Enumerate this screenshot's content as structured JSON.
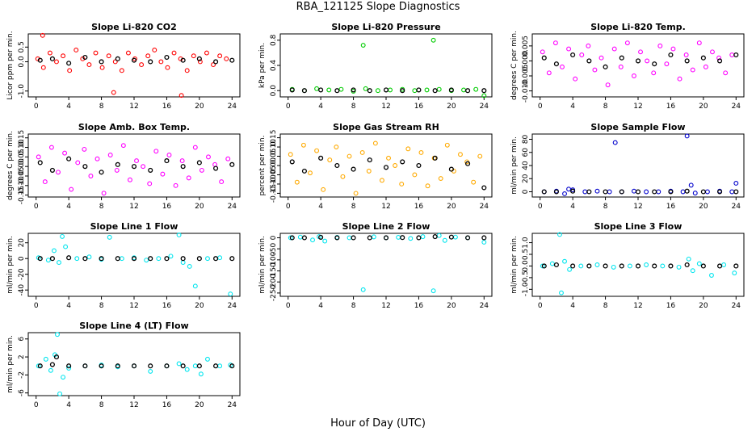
{
  "figure": {
    "title": "RBA_121125  Slope Diagnostics",
    "xlabel": "Hour of Day (UTC)",
    "x_ticks": [
      0,
      4,
      8,
      12,
      16,
      20,
      24
    ],
    "xlim": [
      -0.96,
      24.96
    ]
  },
  "chart_data": [
    {
      "type": "scatter",
      "title": "Slope Li-820 CO2",
      "ylabel": "Licor ppm per min.",
      "ylim": [
        -1.2,
        0.95
      ],
      "yticks": [
        -1.0,
        0.0,
        0.5
      ],
      "tick_labels": [
        "-1.0",
        "0.0",
        "0.5"
      ],
      "series": [
        {
          "color": "#ff0000",
          "role": "raw",
          "x": [
            0.2,
            0.9,
            1.7,
            2.5,
            3.3,
            4.1,
            4.9,
            5.7,
            6.5,
            7.3,
            8.1,
            8.9,
            9.7,
            10.5,
            11.3,
            12.1,
            12.9,
            13.7,
            14.5,
            15.3,
            16.1,
            16.9,
            17.7,
            18.5,
            19.3,
            20.1,
            20.9,
            21.7,
            22.5,
            23.3,
            0.8,
            9.5,
            17.8
          ],
          "y": [
            0.1,
            -0.2,
            0.3,
            0.0,
            0.2,
            -0.3,
            0.4,
            0.1,
            -0.1,
            0.3,
            -0.2,
            0.2,
            0.0,
            -0.3,
            0.3,
            0.1,
            -0.1,
            0.2,
            0.4,
            0.0,
            -0.2,
            0.3,
            0.1,
            -0.3,
            0.2,
            0.0,
            0.3,
            -0.1,
            0.2,
            0.1,
            0.9,
            -1.05,
            -1.15
          ]
        },
        {
          "color": "#000000",
          "role": "hourly",
          "x": [
            0.5,
            2.0,
            4.0,
            6.0,
            8.0,
            10.0,
            12.0,
            14.0,
            16.0,
            18.0,
            20.0,
            22.0,
            24.0
          ],
          "y": [
            0.05,
            0.1,
            -0.05,
            0.15,
            0.0,
            0.1,
            0.05,
            0.0,
            0.15,
            0.05,
            0.1,
            0.0,
            0.05
          ]
        }
      ]
    },
    {
      "type": "scatter",
      "title": "Slope Li-820 Pressure",
      "ylabel": "kPa per min.",
      "ylim": [
        -0.1,
        0.9
      ],
      "yticks": [
        0.0,
        0.4,
        0.8
      ],
      "tick_labels": [
        "0.0",
        "0.4",
        "0.8"
      ],
      "series": [
        {
          "color": "#00cc00",
          "role": "raw",
          "x": [
            0.5,
            2.0,
            3.5,
            5.0,
            6.5,
            8.0,
            9.5,
            11.0,
            12.5,
            14.0,
            15.5,
            17.0,
            18.5,
            20.0,
            21.5,
            23.0,
            9.2,
            17.8,
            24.0
          ],
          "y": [
            0.02,
            0.0,
            0.03,
            0.01,
            0.02,
            -0.01,
            0.03,
            0.0,
            0.01,
            0.02,
            0.0,
            0.01,
            0.02,
            0.0,
            0.01,
            0.02,
            0.72,
            0.8,
            -0.08
          ]
        },
        {
          "color": "#000000",
          "role": "hourly",
          "x": [
            0.5,
            2.0,
            4.0,
            6.0,
            8.0,
            10.0,
            12.0,
            14.0,
            16.0,
            18.0,
            20.0,
            22.0,
            24.0
          ],
          "y": [
            0.01,
            0.0,
            0.01,
            0.0,
            0.01,
            0.0,
            0.01,
            0.0,
            0.01,
            0.0,
            0.01,
            0.0,
            0.0
          ]
        }
      ]
    },
    {
      "type": "scatter",
      "title": "Slope Li-820 Temp.",
      "ylabel": "degrees C per min.",
      "ylim": [
        -0.012,
        0.009
      ],
      "yticks": [
        -0.01,
        -0.005,
        0.0,
        0.005
      ],
      "tick_labels": [
        "-0.010",
        "-0.005",
        "0.000",
        "0.005"
      ],
      "series": [
        {
          "color": "#ff00ff",
          "role": "raw",
          "x": [
            0.3,
            1.1,
            1.9,
            2.7,
            3.5,
            4.3,
            5.1,
            5.9,
            6.7,
            7.5,
            8.3,
            9.1,
            9.9,
            10.7,
            11.5,
            12.3,
            13.1,
            13.9,
            14.7,
            15.5,
            16.3,
            17.1,
            17.9,
            18.7,
            19.5,
            20.3,
            21.1,
            21.9,
            22.7,
            23.5
          ],
          "y": [
            0.003,
            -0.004,
            0.006,
            -0.002,
            0.004,
            -0.006,
            0.002,
            0.005,
            -0.003,
            0.001,
            -0.008,
            0.004,
            -0.002,
            0.006,
            -0.005,
            0.003,
            0.0,
            -0.004,
            0.005,
            -0.001,
            0.004,
            -0.006,
            0.002,
            -0.003,
            0.006,
            -0.002,
            0.003,
            0.001,
            -0.004,
            0.002
          ]
        },
        {
          "color": "#000000",
          "role": "hourly",
          "x": [
            0.5,
            2.0,
            4.0,
            6.0,
            8.0,
            10.0,
            12.0,
            14.0,
            16.0,
            18.0,
            20.0,
            22.0,
            24.0
          ],
          "y": [
            0.001,
            -0.001,
            0.002,
            0.0,
            -0.002,
            0.001,
            0.0,
            -0.001,
            0.002,
            0.0,
            0.001,
            0.0,
            0.002
          ]
        }
      ]
    },
    {
      "type": "scatter",
      "title": "Slope Amb. Box Temp.",
      "ylabel": "degrees C per min.",
      "ylim": [
        -0.16,
        0.17
      ],
      "yticks": [
        -0.15,
        -0.1,
        -0.05,
        0.0,
        0.05,
        0.1,
        0.15
      ],
      "tick_labels": [
        "-0.15",
        "-0.10",
        "-0.05",
        "0.00",
        "0.05",
        "0.10",
        "0.15"
      ],
      "series": [
        {
          "color": "#ff00ff",
          "role": "raw",
          "x": [
            0.3,
            1.1,
            1.9,
            2.7,
            3.5,
            4.3,
            5.1,
            5.9,
            6.7,
            7.5,
            8.3,
            9.1,
            9.9,
            10.7,
            11.5,
            12.3,
            13.1,
            13.9,
            14.7,
            15.5,
            16.3,
            17.1,
            17.9,
            18.7,
            19.5,
            20.3,
            21.1,
            21.9,
            22.7,
            23.5
          ],
          "y": [
            0.05,
            -0.08,
            0.1,
            -0.03,
            0.07,
            -0.12,
            0.02,
            0.09,
            -0.05,
            0.04,
            -0.14,
            0.06,
            -0.02,
            0.11,
            -0.07,
            0.03,
            0.0,
            -0.09,
            0.08,
            -0.04,
            0.06,
            -0.1,
            0.03,
            -0.06,
            0.1,
            -0.02,
            0.05,
            0.01,
            -0.08,
            0.04
          ]
        },
        {
          "color": "#000000",
          "role": "hourly",
          "x": [
            0.5,
            2.0,
            4.0,
            6.0,
            8.0,
            10.0,
            12.0,
            14.0,
            16.0,
            18.0,
            20.0,
            22.0,
            24.0
          ],
          "y": [
            0.02,
            -0.02,
            0.04,
            0.0,
            -0.03,
            0.01,
            0.0,
            -0.02,
            0.03,
            0.0,
            0.02,
            -0.01,
            0.01
          ]
        }
      ]
    },
    {
      "type": "scatter",
      "title": "Slope Gas Stream RH",
      "ylabel": "percent per min.",
      "ylim": [
        -0.17,
        0.17
      ],
      "yticks": [
        -0.15,
        -0.1,
        -0.05,
        0.0,
        0.05,
        0.1,
        0.15
      ],
      "tick_labels": [
        "-0.15",
        "-0.10",
        "-0.05",
        "0.00",
        "0.05",
        "0.10",
        "0.15"
      ],
      "series": [
        {
          "color": "#ffaa00",
          "role": "raw",
          "x": [
            0.3,
            1.1,
            1.9,
            2.7,
            3.5,
            4.3,
            5.1,
            5.9,
            6.7,
            7.5,
            8.3,
            9.1,
            9.9,
            10.7,
            11.5,
            12.3,
            13.1,
            13.9,
            14.7,
            15.5,
            16.3,
            17.1,
            17.9,
            18.7,
            19.5,
            20.3,
            21.1,
            21.9,
            22.7,
            23.5
          ],
          "y": [
            0.06,
            -0.09,
            0.11,
            -0.04,
            0.08,
            -0.13,
            0.03,
            0.1,
            -0.06,
            0.05,
            -0.15,
            0.07,
            -0.03,
            0.12,
            -0.08,
            0.04,
            0.0,
            -0.1,
            0.09,
            -0.05,
            0.07,
            -0.11,
            0.04,
            -0.07,
            0.11,
            -0.03,
            0.06,
            0.02,
            -0.09,
            0.05
          ]
        },
        {
          "color": "#000000",
          "role": "hourly",
          "x": [
            0.5,
            2.0,
            4.0,
            6.0,
            8.0,
            10.0,
            12.0,
            14.0,
            16.0,
            18.0,
            20.0,
            22.0,
            24.0
          ],
          "y": [
            0.02,
            -0.03,
            0.04,
            0.0,
            -0.02,
            0.03,
            -0.01,
            0.02,
            0.0,
            0.04,
            -0.02,
            0.01,
            -0.12
          ]
        }
      ]
    },
    {
      "type": "scatter",
      "title": "Slope Sample Flow",
      "ylabel": "ml/min per min.",
      "ylim": [
        -8,
        88
      ],
      "yticks": [
        0,
        20,
        40,
        60,
        80
      ],
      "tick_labels": [
        "0",
        "20",
        "40",
        "60",
        "80"
      ],
      "series": [
        {
          "color": "#0000cc",
          "role": "raw",
          "x": [
            0.5,
            2.0,
            3.0,
            3.5,
            4.0,
            5.5,
            7.0,
            8.5,
            9.2,
            10.0,
            11.5,
            13.0,
            14.5,
            16.0,
            17.5,
            18.0,
            18.5,
            19.0,
            20.5,
            22.0,
            23.5,
            24.0
          ],
          "y": [
            0,
            1,
            -3,
            4,
            3,
            0,
            1,
            0,
            75,
            0,
            1,
            0,
            0,
            1,
            0,
            85,
            10,
            -2,
            0,
            1,
            0,
            13
          ]
        },
        {
          "color": "#000000",
          "role": "hourly",
          "x": [
            0.5,
            2.0,
            4.0,
            6.0,
            8.0,
            10.0,
            12.0,
            14.0,
            16.0,
            18.0,
            20.0,
            22.0,
            24.0
          ],
          "y": [
            0,
            0,
            1,
            0,
            0,
            0,
            0,
            0,
            0,
            1,
            0,
            0,
            0
          ]
        }
      ]
    },
    {
      "type": "scatter",
      "title": "Slope Line 1 Flow",
      "ylabel": "ml/min per min.",
      "ylim": [
        -48,
        32
      ],
      "yticks": [
        -40,
        -20,
        0,
        20
      ],
      "tick_labels": [
        "-40",
        "-20",
        "0",
        "20"
      ],
      "series": [
        {
          "color": "#00e5ee",
          "role": "raw",
          "x": [
            0.3,
            1.5,
            2.2,
            2.8,
            3.2,
            3.6,
            5.0,
            6.5,
            8.0,
            9.0,
            10.5,
            12.0,
            13.5,
            15.0,
            16.5,
            17.5,
            18.0,
            18.8,
            19.5,
            21.0,
            22.5,
            23.8
          ],
          "y": [
            1,
            -2,
            10,
            -5,
            28,
            15,
            0,
            2,
            -1,
            27,
            0,
            1,
            -2,
            0,
            3,
            30,
            -5,
            -10,
            -35,
            0,
            1,
            -45
          ]
        },
        {
          "color": "#000000",
          "role": "hourly",
          "x": [
            0.5,
            2.0,
            4.0,
            6.0,
            8.0,
            10.0,
            12.0,
            14.0,
            16.0,
            18.0,
            20.0,
            22.0,
            24.0
          ],
          "y": [
            0,
            0,
            1,
            0,
            0,
            0,
            0,
            0,
            0,
            0,
            0,
            0,
            0
          ]
        }
      ]
    },
    {
      "type": "scatter",
      "title": "Slope Line 2 Flow",
      "ylabel": "ml/min per min.",
      "ylim": [
        -265,
        20
      ],
      "yticks": [
        -250,
        -200,
        -150,
        -100,
        -50,
        0
      ],
      "tick_labels": [
        "-250",
        "-200",
        "-150",
        "-100",
        "-50",
        "0"
      ],
      "series": [
        {
          "color": "#00e5ee",
          "role": "raw",
          "x": [
            0.3,
            1.5,
            3.0,
            3.8,
            4.5,
            6.0,
            7.5,
            9.2,
            10.5,
            12.0,
            13.5,
            15.0,
            16.5,
            17.8,
            18.5,
            19.2,
            20.5,
            22.0,
            24.0
          ],
          "y": [
            0,
            3,
            -10,
            5,
            -15,
            2,
            0,
            -235,
            4,
            0,
            2,
            -3,
            5,
            -240,
            10,
            -12,
            3,
            0,
            -20
          ]
        },
        {
          "color": "#000000",
          "role": "hourly",
          "x": [
            0.5,
            2.0,
            4.0,
            6.0,
            8.0,
            10.0,
            12.0,
            14.0,
            16.0,
            18.0,
            20.0,
            22.0,
            24.0
          ],
          "y": [
            0,
            0,
            2,
            0,
            0,
            0,
            0,
            1,
            0,
            5,
            3,
            0,
            0
          ]
        }
      ]
    },
    {
      "type": "scatter",
      "title": "Slope Line 3 Flow",
      "ylabel": "ml/min per min.",
      "ylim": [
        -1.3,
        1.4
      ],
      "yticks": [
        -1.0,
        -0.5,
        0.0,
        0.5,
        1.0
      ],
      "tick_labels": [
        "-1.0",
        "-0.5",
        "0.0",
        "0.5",
        "1.0"
      ],
      "series": [
        {
          "color": "#00e5ee",
          "role": "raw",
          "x": [
            0.3,
            1.5,
            2.4,
            2.6,
            3.0,
            3.6,
            5.0,
            7.0,
            9.0,
            11.0,
            13.0,
            15.0,
            17.0,
            18.2,
            18.7,
            19.5,
            21.0,
            22.5,
            23.8
          ],
          "y": [
            0.0,
            0.1,
            1.35,
            -1.15,
            0.2,
            -0.15,
            0.0,
            0.05,
            -0.05,
            0.0,
            0.05,
            0.0,
            -0.05,
            0.3,
            -0.2,
            0.1,
            -0.4,
            0.05,
            -0.3
          ]
        },
        {
          "color": "#000000",
          "role": "hourly",
          "x": [
            0.5,
            2.0,
            4.0,
            6.0,
            8.0,
            10.0,
            12.0,
            14.0,
            16.0,
            18.0,
            20.0,
            22.0,
            24.0
          ],
          "y": [
            0.0,
            0.05,
            0.0,
            0.0,
            0.0,
            0.0,
            0.0,
            0.0,
            0.0,
            0.05,
            0.0,
            0.0,
            0.0
          ]
        }
      ]
    },
    {
      "type": "scatter",
      "title": "Slope Line 4 (LT) Flow",
      "ylabel": "ml/min per min.",
      "ylim": [
        -6.6,
        7.4
      ],
      "yticks": [
        -6,
        -2,
        2,
        6
      ],
      "tick_labels": [
        "-6",
        "-2",
        "2",
        "6"
      ],
      "series": [
        {
          "color": "#00e5ee",
          "role": "raw",
          "x": [
            0.3,
            1.2,
            1.8,
            2.3,
            2.6,
            2.9,
            3.3,
            4.0,
            6.0,
            8.0,
            10.0,
            12.0,
            14.0,
            16.0,
            17.5,
            18.5,
            19.5,
            20.2,
            21.0,
            22.5,
            23.8
          ],
          "y": [
            0.0,
            1.5,
            -1.0,
            2.5,
            7.0,
            -6.2,
            -2.5,
            -0.5,
            0.0,
            0.2,
            -0.2,
            0.0,
            -1.2,
            0.0,
            0.5,
            -0.8,
            0.0,
            -1.8,
            1.5,
            0.0,
            0.2
          ]
        },
        {
          "color": "#000000",
          "role": "hourly",
          "x": [
            0.5,
            2.0,
            2.5,
            4.0,
            6.0,
            8.0,
            10.0,
            12.0,
            14.0,
            16.0,
            18.0,
            20.0,
            22.0,
            24.0
          ],
          "y": [
            0.0,
            0.3,
            2.0,
            0.0,
            0.0,
            0.0,
            0.0,
            0.0,
            0.0,
            0.0,
            0.0,
            0.0,
            0.0,
            0.0
          ]
        }
      ]
    }
  ]
}
